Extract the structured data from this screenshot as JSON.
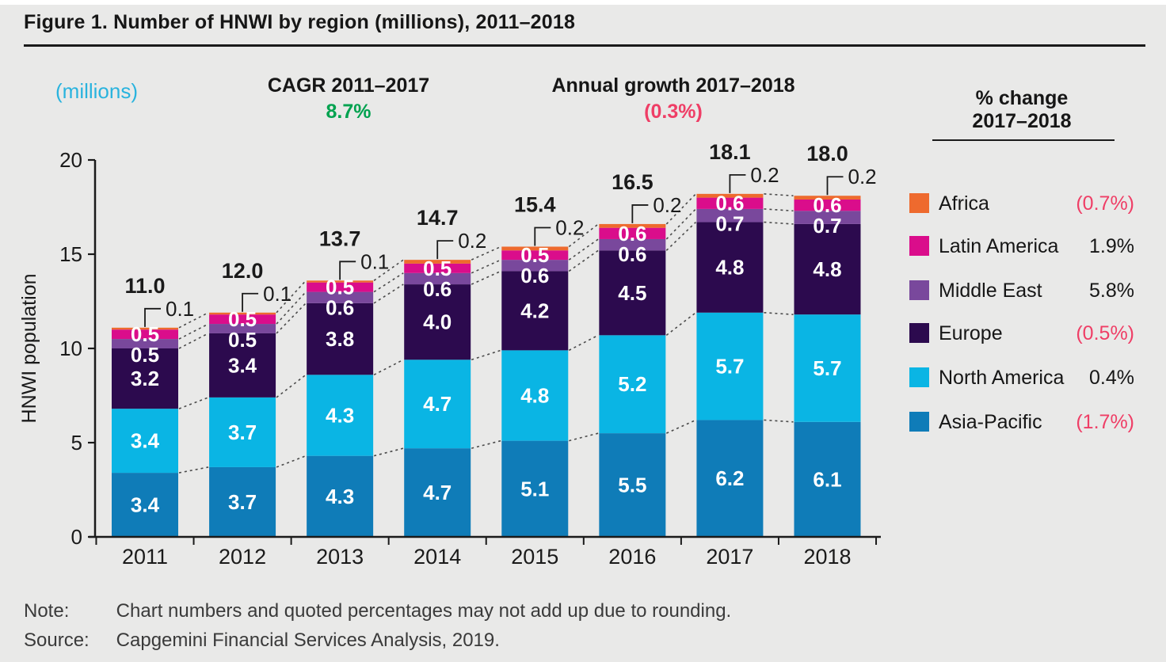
{
  "figure": {
    "title": "Figure 1. Number of HNWI by region (millions), 2011–2018",
    "axis_unit_label": "(millions)",
    "cagr": {
      "label": "CAGR 2011–2017",
      "value": "8.7%"
    },
    "annual_growth": {
      "label": "Annual growth 2017–2018",
      "value": "(0.3%)"
    },
    "note_label": "Note:",
    "note_text": "Chart numbers and quoted percentages may not add up due to rounding.",
    "source_label": "Source:",
    "source_text": "Capgemini Financial Services Analysis, 2019."
  },
  "legend": {
    "title_line1": "% change",
    "title_line2": "2017–2018",
    "items": [
      {
        "label": "Africa",
        "change": "(0.7%)",
        "negative": true,
        "color": "#ee6a2e"
      },
      {
        "label": "Latin America",
        "change": "1.9%",
        "negative": false,
        "color": "#da0d8b"
      },
      {
        "label": "Middle East",
        "change": "5.8%",
        "negative": false,
        "color": "#79489c"
      },
      {
        "label": "Europe",
        "change": "(0.5%)",
        "negative": true,
        "color": "#2c0a4e"
      },
      {
        "label": "North America",
        "change": "0.4%",
        "negative": false,
        "color": "#0ab5e4"
      },
      {
        "label": "Asia-Pacific",
        "change": "(1.7%)",
        "negative": true,
        "color": "#0f7cb8"
      }
    ]
  },
  "chart_data": {
    "type": "bar",
    "stacked": true,
    "title": "Number of HNWI by region (millions), 2011-2018",
    "xlabel": "",
    "ylabel": "HNWI population",
    "ylim": [
      0,
      20
    ],
    "yticks": [
      0,
      5,
      10,
      15,
      20
    ],
    "grid": false,
    "legend_position": "right",
    "categories": [
      "2011",
      "2012",
      "2013",
      "2014",
      "2015",
      "2016",
      "2017",
      "2018"
    ],
    "series": [
      {
        "name": "Asia-Pacific",
        "color": "#0f7cb8",
        "values": [
          3.4,
          3.7,
          4.3,
          4.7,
          5.1,
          5.5,
          6.2,
          6.1
        ]
      },
      {
        "name": "North America",
        "color": "#0ab5e4",
        "values": [
          3.4,
          3.7,
          4.3,
          4.7,
          4.8,
          5.2,
          5.7,
          5.7
        ]
      },
      {
        "name": "Europe",
        "color": "#2c0a4e",
        "values": [
          3.2,
          3.4,
          3.8,
          4.0,
          4.2,
          4.5,
          4.8,
          4.8
        ]
      },
      {
        "name": "Middle East",
        "color": "#79489c",
        "values": [
          0.5,
          0.5,
          0.6,
          0.6,
          0.6,
          0.6,
          0.7,
          0.7
        ]
      },
      {
        "name": "Latin America",
        "color": "#da0d8b",
        "values": [
          0.5,
          0.5,
          0.5,
          0.5,
          0.5,
          0.6,
          0.6,
          0.6
        ]
      },
      {
        "name": "Africa",
        "color": "#ee6a2e",
        "values": [
          0.1,
          0.1,
          0.1,
          0.2,
          0.2,
          0.2,
          0.2,
          0.2
        ]
      }
    ],
    "total_labels": [
      "11.0",
      "12.0",
      "13.7",
      "14.7",
      "15.4",
      "16.5",
      "18.1",
      "18.0"
    ],
    "africa_callout_labels": [
      "0.1",
      "0.1",
      "0.1",
      "0.2",
      "0.2",
      "0.2",
      "0.2",
      "0.2"
    ]
  }
}
